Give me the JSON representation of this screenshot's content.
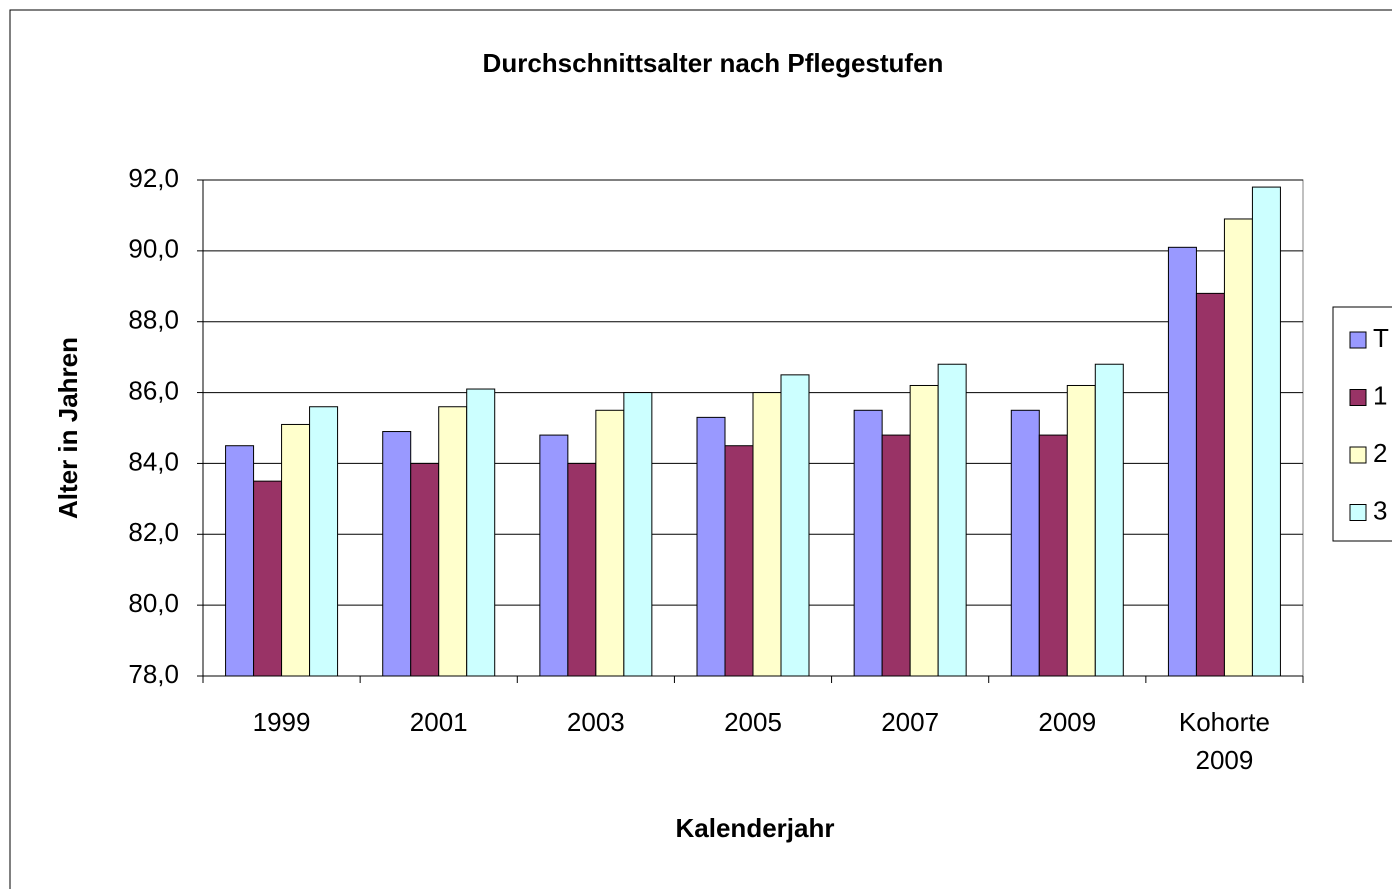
{
  "chart_data": {
    "type": "bar",
    "title": "Durchschnittsalter nach Pflegestufen",
    "x_label": "Kalenderjahr",
    "y_label": "Alter in Jahren",
    "categories": [
      "1999",
      "2001",
      "2003",
      "2005",
      "2007",
      "2009",
      "Kohorte\n2009"
    ],
    "series": [
      {
        "name": "T",
        "color": "#9999ff",
        "values": [
          84.5,
          84.9,
          84.8,
          85.3,
          85.5,
          85.5,
          90.1
        ]
      },
      {
        "name": "1",
        "color": "#993366",
        "values": [
          83.5,
          84.0,
          84.0,
          84.5,
          84.8,
          84.8,
          88.8
        ]
      },
      {
        "name": "2",
        "color": "#ffffcc",
        "values": [
          85.1,
          85.6,
          85.5,
          86.0,
          86.2,
          86.2,
          90.9
        ]
      },
      {
        "name": "3",
        "color": "#ccffff",
        "values": [
          85.6,
          86.1,
          86.0,
          86.5,
          86.8,
          86.8,
          91.8
        ]
      }
    ],
    "ylim": [
      78,
      92
    ],
    "yticks": [
      {
        "value": 78,
        "label": "78,0"
      },
      {
        "value": 80,
        "label": "80,0"
      },
      {
        "value": 82,
        "label": "82,0"
      },
      {
        "value": 84,
        "label": "84,0"
      },
      {
        "value": 86,
        "label": "86,0"
      },
      {
        "value": 88,
        "label": "88,0"
      },
      {
        "value": 90,
        "label": "90,0"
      },
      {
        "value": 92,
        "label": "92,0"
      }
    ],
    "grid": true,
    "legend": "right"
  }
}
